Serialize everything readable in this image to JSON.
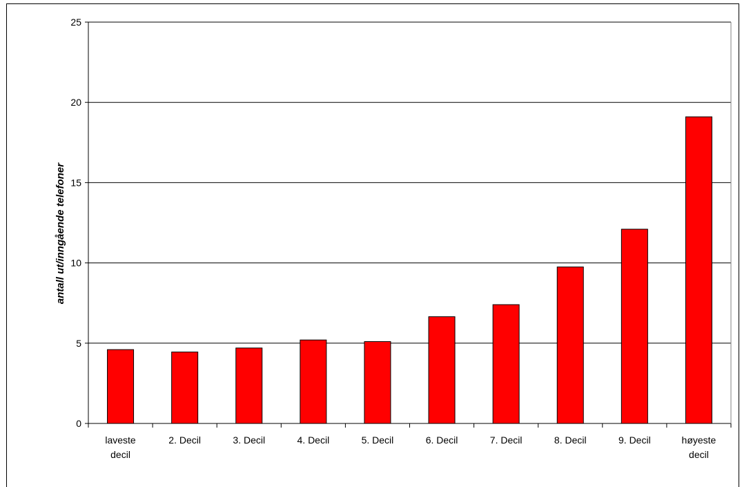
{
  "chart_data": {
    "type": "bar",
    "title": "",
    "xlabel": "",
    "ylabel": "antall ut/inngående telefoner",
    "categories": [
      [
        "laveste",
        "decil"
      ],
      [
        "2. Decil"
      ],
      [
        "3. Decil"
      ],
      [
        "4. Decil"
      ],
      [
        "5. Decil"
      ],
      [
        "6. Decil"
      ],
      [
        "7. Decil"
      ],
      [
        "8. Decil"
      ],
      [
        "9. Decil"
      ],
      [
        "høyeste",
        "decil"
      ]
    ],
    "values": [
      4.6,
      4.45,
      4.7,
      5.2,
      5.1,
      6.65,
      7.4,
      9.75,
      12.1,
      19.1
    ],
    "ylim": [
      0,
      25
    ],
    "yticks": [
      0,
      5,
      10,
      15,
      20,
      25
    ],
    "grid": true,
    "legend": "none",
    "colors": {
      "bar": "#ff0000",
      "bar_stroke": "#000000",
      "grid": "#000000",
      "axis": "#000000"
    }
  }
}
